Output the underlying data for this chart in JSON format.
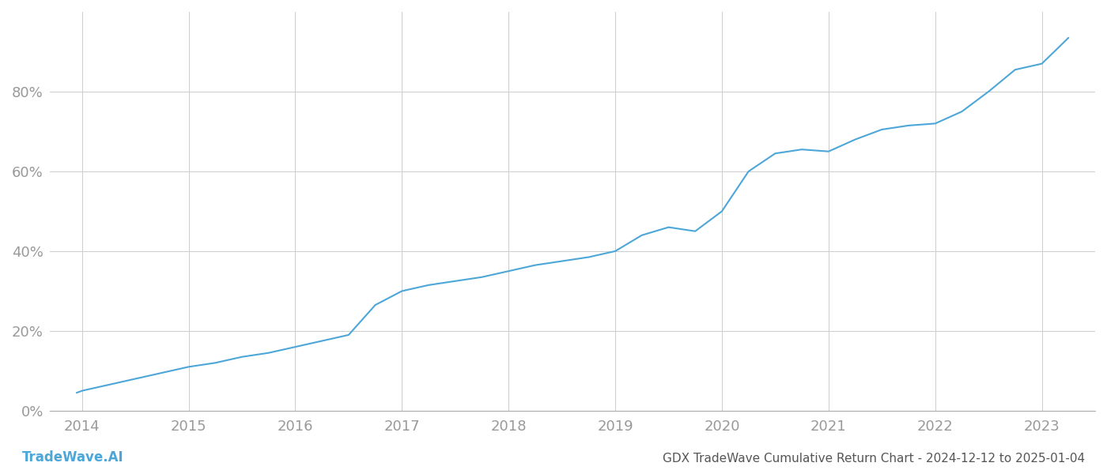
{
  "title": "GDX TradeWave Cumulative Return Chart - 2024-12-12 to 2025-01-04",
  "watermark": "TradeWave.AI",
  "line_color": "#4da6d8",
  "background_color": "#ffffff",
  "grid_color": "#cccccc",
  "x_years": [
    2013.95,
    2014.0,
    2014.25,
    2014.5,
    2014.75,
    2015.0,
    2015.25,
    2015.5,
    2015.75,
    2016.0,
    2016.25,
    2016.5,
    2016.75,
    2017.0,
    2017.25,
    2017.5,
    2017.75,
    2018.0,
    2018.25,
    2018.5,
    2018.75,
    2019.0,
    2019.25,
    2019.5,
    2019.75,
    2020.0,
    2020.25,
    2020.5,
    2020.75,
    2021.0,
    2021.25,
    2021.5,
    2021.75,
    2022.0,
    2022.25,
    2022.5,
    2022.75,
    2023.0,
    2023.25
  ],
  "y_values": [
    4.5,
    5.0,
    6.5,
    8.0,
    9.5,
    11.0,
    12.0,
    13.5,
    14.5,
    16.0,
    17.5,
    19.0,
    26.5,
    30.0,
    31.5,
    32.5,
    33.5,
    35.0,
    36.5,
    37.5,
    38.5,
    40.0,
    44.0,
    46.0,
    45.0,
    50.0,
    60.0,
    64.5,
    65.5,
    65.0,
    68.0,
    70.5,
    71.5,
    72.0,
    75.0,
    80.0,
    85.5,
    87.0,
    93.5
  ],
  "xlim": [
    2013.7,
    2023.5
  ],
  "ylim": [
    0,
    100
  ],
  "yticks": [
    0,
    20,
    40,
    60,
    80
  ],
  "ytick_labels": [
    "0%",
    "20%",
    "40%",
    "60%",
    "80%"
  ],
  "xtick_years": [
    2014,
    2015,
    2016,
    2017,
    2018,
    2019,
    2020,
    2021,
    2022,
    2023
  ],
  "axis_label_color": "#999999",
  "title_color": "#555555",
  "watermark_color": "#4da6d8",
  "line_width": 1.5
}
